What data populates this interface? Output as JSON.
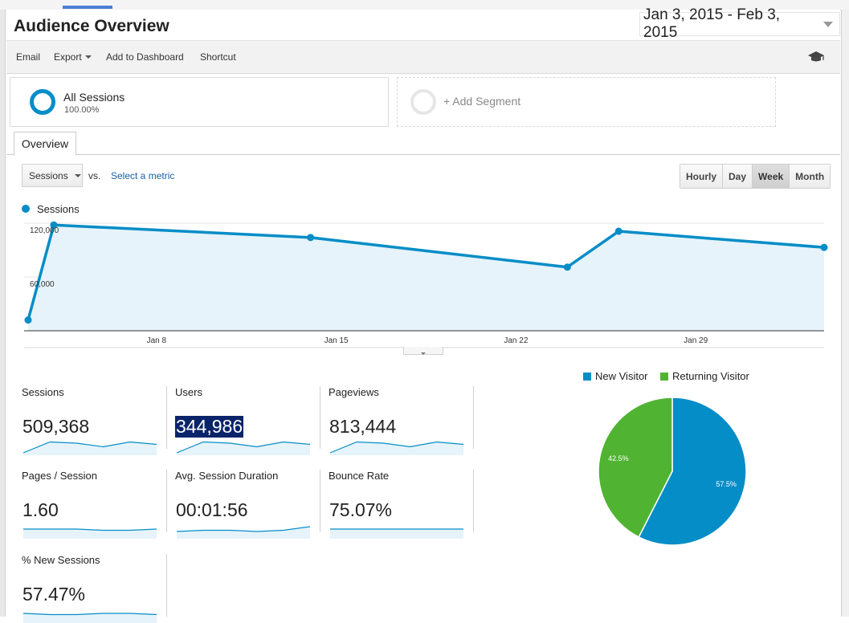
{
  "page": {
    "title": "Audience Overview",
    "date_range": "Jan 3, 2015 - Feb 3, 2015"
  },
  "toolbar": {
    "email": "Email",
    "export": "Export",
    "add_dashboard": "Add to Dashboard",
    "shortcut": "Shortcut",
    "help_icon": "graduation-cap-icon"
  },
  "segments": {
    "active_name": "All Sessions",
    "active_pct": "100.00%",
    "add_label": "+ Add Segment"
  },
  "tabs": {
    "overview": "Overview"
  },
  "controls": {
    "metric_select": "Sessions",
    "vs": "vs.",
    "select_metric": "Select a metric",
    "buttons": [
      "Hourly",
      "Day",
      "Week",
      "Month"
    ],
    "active_button": "Week"
  },
  "colors": {
    "series": "#058dc7",
    "area_fill": "#e6f3fa",
    "new_visitor": "#058dc7",
    "returning_visitor": "#50b432",
    "highlight": "#0a246a"
  },
  "chart_data": [
    {
      "type": "line",
      "series": [
        {
          "name": "Sessions",
          "x": [
            3,
            4,
            14,
            24,
            26,
            34
          ],
          "values": [
            12000,
            118000,
            104000,
            71000,
            111000,
            93000
          ]
        }
      ],
      "x_ticks": [
        "Jan 8",
        "Jan 15",
        "Jan 22",
        "Jan 29"
      ],
      "x_tick_days": [
        8,
        15,
        22,
        29
      ],
      "y_ticks": [
        "120,000",
        "60,000"
      ],
      "y_tick_values": [
        120000,
        60000
      ],
      "xlim": [
        3,
        34
      ],
      "ylim": [
        0,
        120000
      ],
      "grid": true
    },
    {
      "type": "pie",
      "categories": [
        "New Visitor",
        "Returning Visitor"
      ],
      "values": [
        57.5,
        42.5
      ],
      "labels": [
        "57.5%",
        "42.5%"
      ],
      "legend": "top"
    }
  ],
  "metrics": [
    {
      "label": "Sessions",
      "value": "509,368",
      "spark": [
        10,
        1,
        2,
        5,
        1,
        3
      ]
    },
    {
      "label": "Users",
      "value": "344,986",
      "spark": [
        10,
        1,
        2,
        5,
        1,
        3
      ]
    },
    {
      "label": "Pageviews",
      "value": "813,444",
      "spark": [
        10,
        1,
        2,
        5,
        1,
        3
      ]
    },
    {
      "label": "Pages / Session",
      "value": "1.60",
      "spark": [
        4,
        4,
        4,
        5,
        5,
        4
      ]
    },
    {
      "label": "Avg. Session Duration",
      "value": "00:01:56",
      "spark": [
        6,
        5,
        5,
        6,
        5,
        2
      ]
    },
    {
      "label": "Bounce Rate",
      "value": "75.07%",
      "spark": [
        4,
        4,
        4,
        4,
        4,
        4
      ]
    },
    {
      "label": "% New Sessions",
      "value": "57.47%",
      "spark": [
        4,
        5,
        5,
        4,
        4,
        5
      ]
    }
  ]
}
